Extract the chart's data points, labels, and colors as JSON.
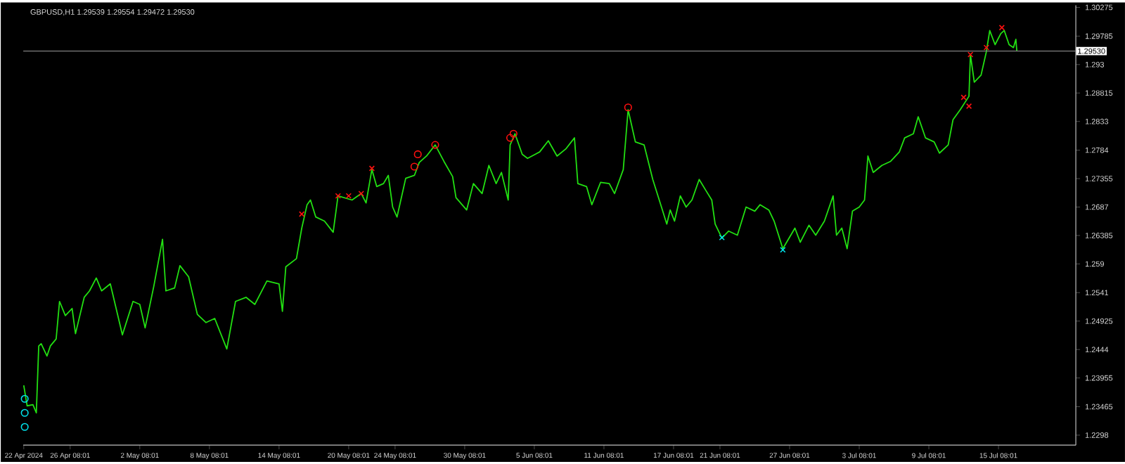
{
  "chart_data": {
    "type": "line",
    "title": "GBPUSD,H1  1.29539 1.29554 1.29472 1.29530",
    "xlim": [
      "2024-04-22T07:00",
      "2024-07-22T00:00"
    ],
    "ylim": [
      1.2281,
      1.3031
    ],
    "xticks": [
      {
        "value": "2024-04-22T08:00",
        "label": "22 Apr 2024"
      },
      {
        "value": "2024-04-26T08:01",
        "label": "26 Apr 08:01"
      },
      {
        "value": "2024-05-02T08:01",
        "label": "2 May 08:01"
      },
      {
        "value": "2024-05-08T08:01",
        "label": "8 May 08:01"
      },
      {
        "value": "2024-05-14T08:01",
        "label": "14 May 08:01"
      },
      {
        "value": "2024-05-20T08:01",
        "label": "20 May 08:01"
      },
      {
        "value": "2024-05-24T08:01",
        "label": "24 May 08:01"
      },
      {
        "value": "2024-05-30T08:01",
        "label": "30 May 08:01"
      },
      {
        "value": "2024-06-05T08:01",
        "label": "5 Jun 08:01"
      },
      {
        "value": "2024-06-11T08:01",
        "label": "11 Jun 08:01"
      },
      {
        "value": "2024-06-17T08:01",
        "label": "17 Jun 08:01"
      },
      {
        "value": "2024-06-21T08:01",
        "label": "21 Jun 08:01"
      },
      {
        "value": "2024-06-27T08:01",
        "label": "27 Jun 08:01"
      },
      {
        "value": "2024-07-03T08:01",
        "label": "3 Jul 08:01"
      },
      {
        "value": "2024-07-09T08:01",
        "label": "9 Jul 08:01"
      },
      {
        "value": "2024-07-15T08:01",
        "label": "15 Jul 08:01"
      }
    ],
    "yticks": [
      1.2298,
      1.23465,
      1.23955,
      1.2444,
      1.24925,
      1.2541,
      1.259,
      1.26385,
      1.2687,
      1.27355,
      1.2784,
      1.2833,
      1.28815,
      1.293,
      1.29785,
      1.30275
    ],
    "ref_lines": [
      {
        "axis": "y",
        "value": 1.2953,
        "label": "1.29530",
        "color": "#808080",
        "line_style": "solid"
      }
    ],
    "series": [
      {
        "color": "#22e012",
        "marker": "none",
        "x": [
          "2024-04-22T08:00",
          "2024-04-22T15:00",
          "2024-04-23T03:00",
          "2024-04-23T10:00",
          "2024-04-23T15:00",
          "2024-04-23T20:00",
          "2024-04-24T08:00",
          "2024-04-24T15:00",
          "2024-04-25T03:00",
          "2024-04-25T10:00",
          "2024-04-25T22:00",
          "2024-04-26T12:00",
          "2024-04-26T19:00",
          "2024-04-27T13:00",
          "2024-04-28T00:00",
          "2024-04-28T14:00",
          "2024-04-29T01:00",
          "2024-04-29T19:00",
          "2024-04-30T20:00",
          "2024-05-01T18:00",
          "2024-05-02T08:00",
          "2024-05-02T19:00",
          "2024-05-03T13:00",
          "2024-05-04T07:00",
          "2024-05-04T14:00",
          "2024-05-05T08:00",
          "2024-05-05T19:00",
          "2024-05-06T13:00",
          "2024-05-07T07:00",
          "2024-05-08T01:00",
          "2024-05-08T19:00",
          "2024-05-09T20:00",
          "2024-05-10T14:00",
          "2024-05-11T12:00",
          "2024-05-12T06:00",
          "2024-05-13T07:00",
          "2024-05-14T08:00",
          "2024-05-14T15:00",
          "2024-05-14T22:00",
          "2024-05-15T20:00",
          "2024-05-16T07:00",
          "2024-05-16T18:00",
          "2024-05-17T01:00",
          "2024-05-17T12:00",
          "2024-05-18T06:00",
          "2024-05-19T00:00",
          "2024-05-19T10:00",
          "2024-05-20T15:00",
          "2024-05-21T10:00",
          "2024-05-21T20:00",
          "2024-05-22T08:00",
          "2024-05-22T18:00",
          "2024-05-23T08:00",
          "2024-05-23T18:00",
          "2024-05-24T03:00",
          "2024-05-24T12:00",
          "2024-05-25T06:00",
          "2024-05-26T00:00",
          "2024-05-26T10:00",
          "2024-05-27T01:00",
          "2024-05-27T19:00",
          "2024-05-28T13:00",
          "2024-05-29T07:00",
          "2024-05-29T14:00",
          "2024-05-30T12:00",
          "2024-05-31T02:00",
          "2024-05-31T20:00",
          "2024-06-01T10:00",
          "2024-06-02T01:00",
          "2024-06-02T12:00",
          "2024-06-03T02:00",
          "2024-06-03T06:00",
          "2024-06-03T16:00",
          "2024-06-04T07:00",
          "2024-06-04T18:00",
          "2024-06-05T19:00",
          "2024-06-06T13:00",
          "2024-06-07T07:00",
          "2024-06-08T01:00",
          "2024-06-08T19:00",
          "2024-06-09T02:00",
          "2024-06-09T20:00",
          "2024-06-10T07:00",
          "2024-06-11T01:00",
          "2024-06-11T19:00",
          "2024-06-12T06:00",
          "2024-06-13T00:00",
          "2024-06-13T10:00",
          "2024-06-14T01:00",
          "2024-06-14T19:00",
          "2024-06-15T13:00",
          "2024-06-16T07:00",
          "2024-06-16T18:00",
          "2024-06-17T01:00",
          "2024-06-17T10:00",
          "2024-06-17T22:00",
          "2024-06-18T10:00",
          "2024-06-18T22:00",
          "2024-06-19T13:00",
          "2024-06-20T03:00",
          "2024-06-20T15:00",
          "2024-06-20T22:00",
          "2024-06-21T12:00",
          "2024-06-22T02:00",
          "2024-06-22T20:00",
          "2024-06-23T14:00",
          "2024-06-24T08:00",
          "2024-06-24T19:00",
          "2024-06-25T13:00",
          "2024-06-26T00:00",
          "2024-06-26T18:00",
          "2024-06-27T19:00",
          "2024-06-28T06:00",
          "2024-06-29T00:00",
          "2024-06-29T14:00",
          "2024-06-30T08:00",
          "2024-07-01T02:00",
          "2024-07-01T09:00",
          "2024-07-01T20:00",
          "2024-07-02T07:00",
          "2024-07-02T18:00",
          "2024-07-03T08:00",
          "2024-07-03T19:00",
          "2024-07-04T02:00",
          "2024-07-04T13:00",
          "2024-07-05T07:00",
          "2024-07-06T01:00",
          "2024-07-06T19:00",
          "2024-07-07T06:00",
          "2024-07-08T00:00",
          "2024-07-08T10:00",
          "2024-07-09T01:00",
          "2024-07-09T19:00",
          "2024-07-10T06:00",
          "2024-07-11T00:00",
          "2024-07-11T10:00",
          "2024-07-12T01:00",
          "2024-07-12T19:00",
          "2024-07-12T22:00",
          "2024-07-13T06:00",
          "2024-07-13T20:00",
          "2024-07-14T07:00",
          "2024-07-14T14:00",
          "2024-07-15T01:00",
          "2024-07-15T13:00",
          "2024-07-15T20:00",
          "2024-07-16T06:00",
          "2024-07-16T15:00",
          "2024-07-16T20:00",
          "2024-07-16T22:00"
        ],
        "values": [
          1.2383,
          1.2348,
          1.235,
          1.2336,
          1.245,
          1.2454,
          1.2433,
          1.245,
          1.2462,
          1.2526,
          1.2502,
          1.2514,
          1.2471,
          1.2533,
          1.2544,
          1.2566,
          1.2544,
          1.2556,
          1.2469,
          1.2526,
          1.2521,
          1.2481,
          1.2552,
          1.2632,
          1.2544,
          1.2549,
          1.2587,
          1.2568,
          1.2504,
          1.249,
          1.2497,
          1.2445,
          1.2526,
          1.2533,
          1.2521,
          1.2561,
          1.2556,
          1.2509,
          1.2585,
          1.2599,
          1.2651,
          1.2691,
          1.2699,
          1.267,
          1.2663,
          1.2644,
          1.2706,
          1.2699,
          1.271,
          1.2694,
          1.2751,
          1.2722,
          1.2727,
          1.2741,
          1.2687,
          1.267,
          1.2736,
          1.2741,
          1.2763,
          1.2774,
          1.2793,
          1.2765,
          1.2739,
          1.2703,
          1.2682,
          1.2727,
          1.271,
          1.2758,
          1.2727,
          1.2746,
          1.2699,
          1.2793,
          1.2812,
          1.2777,
          1.277,
          1.2781,
          1.28,
          1.2774,
          1.2786,
          1.2805,
          1.2727,
          1.2722,
          1.2691,
          1.2729,
          1.2727,
          1.271,
          1.2751,
          1.2853,
          1.2798,
          1.2793,
          1.2734,
          1.2687,
          1.2658,
          1.2682,
          1.2663,
          1.2706,
          1.2687,
          1.2699,
          1.2734,
          1.2715,
          1.2699,
          1.2658,
          1.2634,
          1.2646,
          1.2639,
          1.2687,
          1.268,
          1.2691,
          1.2682,
          1.2663,
          1.2616,
          1.2651,
          1.2627,
          1.2656,
          1.2639,
          1.2663,
          1.2706,
          1.2639,
          1.2651,
          1.2616,
          1.268,
          1.2687,
          1.2699,
          1.2774,
          1.2746,
          1.2758,
          1.2765,
          1.2781,
          1.2805,
          1.2812,
          1.2841,
          1.2805,
          1.2798,
          1.2779,
          1.2793,
          1.2836,
          1.2853,
          1.2876,
          1.2947,
          1.29,
          1.2912,
          1.2952,
          1.2988,
          1.2964,
          1.2983,
          1.2988,
          1.2964,
          1.2959,
          1.2973,
          1.2953
        ]
      },
      {
        "type": "scatter",
        "color": "#ff1010",
        "marker": "circle",
        "x": [
          "2024-06-13T10:00",
          "2024-05-27T19:00",
          "2024-05-26T07:00",
          "2024-05-26T00:00",
          "2024-06-03T06:00",
          "2024-06-03T13:00"
        ],
        "values": [
          1.2857,
          1.2793,
          1.2777,
          1.2756,
          1.2805,
          1.2812
        ]
      },
      {
        "type": "scatter",
        "color": "#ff1010",
        "marker": "cross",
        "x": [
          "2024-05-16T07:00",
          "2024-05-19T10:00",
          "2024-05-20T08:00",
          "2024-05-21T10:00",
          "2024-05-22T08:00",
          "2024-07-12T19:00",
          "2024-07-12T08:00",
          "2024-07-14T07:00",
          "2024-07-12T22:00",
          "2024-07-15T15:00"
        ],
        "values": [
          1.2675,
          1.2706,
          1.2706,
          1.271,
          1.2753,
          1.2859,
          1.2874,
          1.2959,
          1.2947,
          1.2993
        ]
      },
      {
        "type": "scatter",
        "color": "#00e5ee",
        "marker": "circle",
        "x": [
          "2024-04-22T10:00",
          "2024-04-22T10:00",
          "2024-04-22T10:00"
        ],
        "values": [
          1.236,
          1.2336,
          1.2312
        ]
      },
      {
        "type": "scatter",
        "color": "#00e5ee",
        "marker": "cross",
        "x": [
          "2024-06-21T12:00",
          "2024-06-26T18:00"
        ],
        "values": [
          1.2635,
          1.2614
        ]
      }
    ]
  }
}
